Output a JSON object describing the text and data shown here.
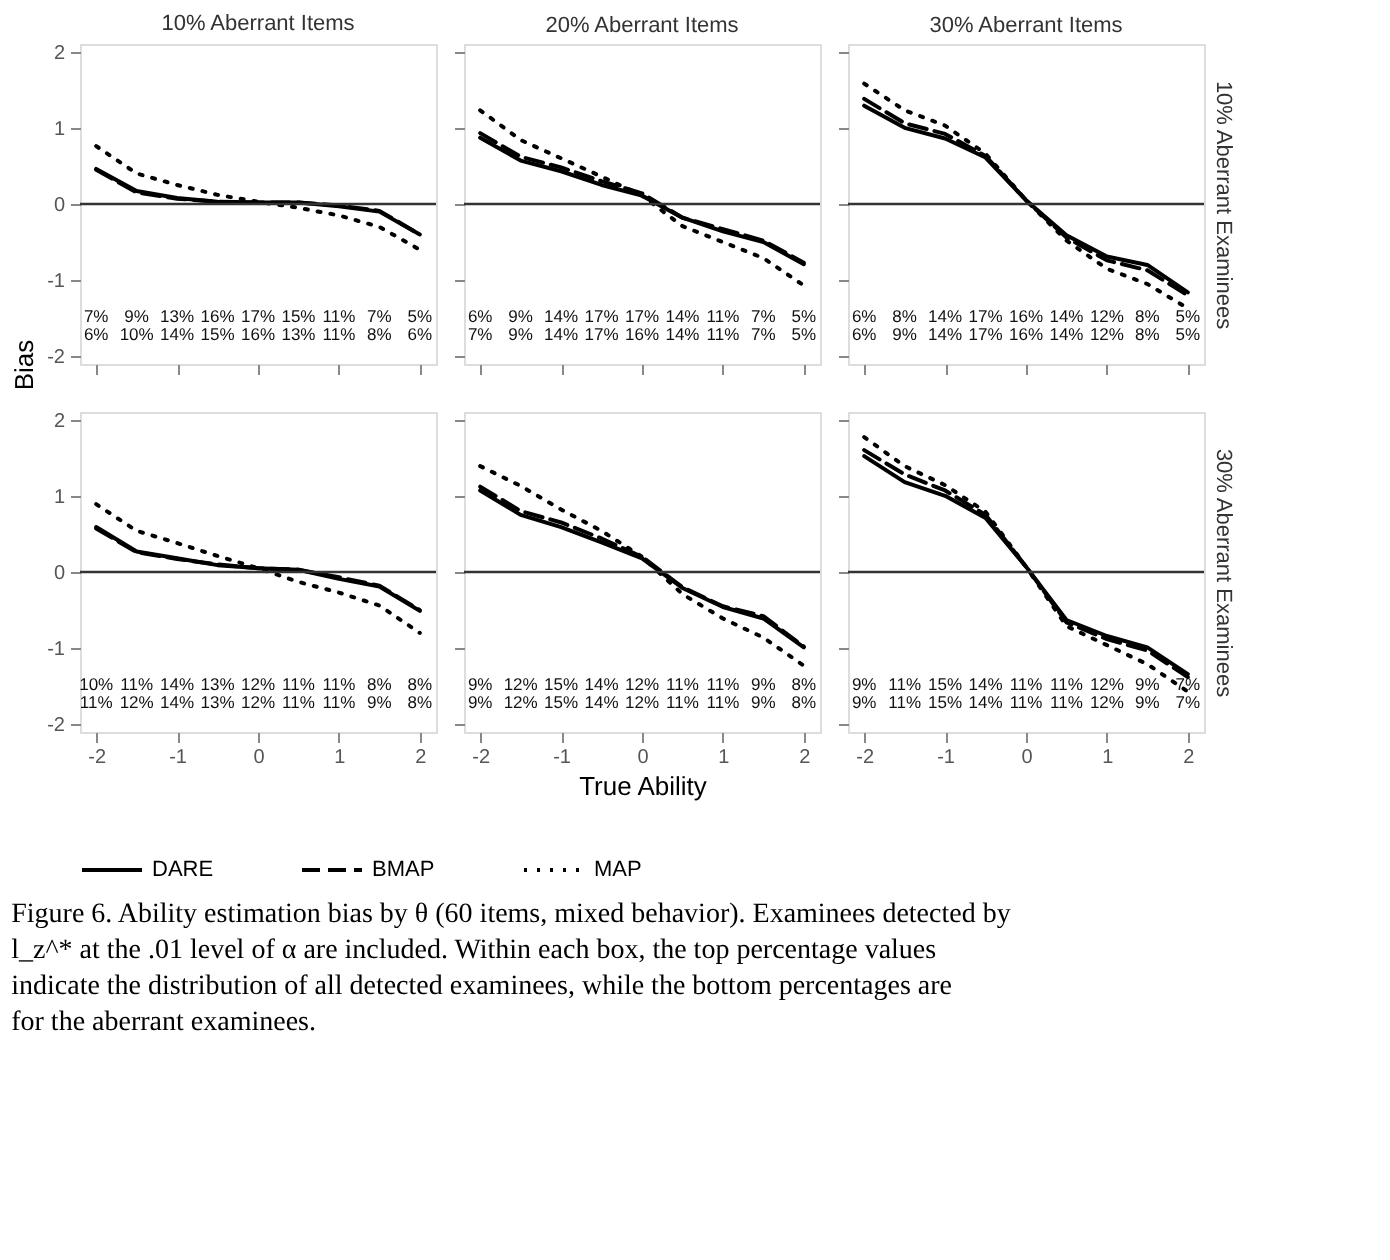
{
  "chart_data": [
    {
      "type": "line",
      "title": "10% Aberrant Items",
      "ylabel": "Bias",
      "xlim": [
        -2.2,
        2.2
      ],
      "ylim": [
        -2.1,
        2.1
      ],
      "xticks": [
        -2,
        -1,
        0,
        1,
        2
      ],
      "yticks": [
        -2,
        -1,
        0,
        1,
        2
      ],
      "tick_labels": "y",
      "grid": false,
      "legend": "bottom",
      "marker": "none",
      "x": [
        -2,
        -1.5,
        -1,
        -0.5,
        0,
        0.5,
        1,
        1.5,
        2
      ],
      "series": [
        {
          "name": "DARE",
          "color": "#000000",
          "line_style": "solid",
          "values": [
            0.46,
            0.17,
            0.08,
            0.03,
            0.02,
            0.02,
            -0.03,
            -0.1,
            -0.4
          ]
        },
        {
          "name": "BMAP",
          "color": "#000000",
          "line_style": "dashed",
          "values": [
            0.45,
            0.15,
            0.07,
            0.03,
            0.02,
            0.02,
            -0.02,
            -0.09,
            -0.4
          ]
        },
        {
          "name": "MAP",
          "color": "#000000",
          "line_style": "dotted",
          "values": [
            0.76,
            0.4,
            0.25,
            0.12,
            0.03,
            -0.05,
            -0.15,
            -0.3,
            -0.6
          ]
        }
      ],
      "ref_lines": [
        {
          "axis": "y",
          "value": 0
        }
      ],
      "annotations": [
        "7%",
        "9%",
        "13%",
        "16%",
        "17%",
        "15%",
        "11%",
        "7%",
        "5%",
        "6%",
        "10%",
        "14%",
        "15%",
        "16%",
        "13%",
        "11%",
        "8%",
        "6%"
      ]
    },
    {
      "type": "line",
      "title": "20% Aberrant Items",
      "xlim": [
        -2.2,
        2.2
      ],
      "ylim": [
        -2.1,
        2.1
      ],
      "xticks": [
        -2,
        -1,
        0,
        1,
        2
      ],
      "yticks": [
        -2,
        -1,
        0,
        1,
        2
      ],
      "tick_labels": false,
      "grid": false,
      "legend": "bottom",
      "marker": "none",
      "x": [
        -2,
        -1.5,
        -1,
        -0.5,
        0,
        0.5,
        1,
        1.5,
        2
      ],
      "series": [
        {
          "name": "DARE",
          "color": "#000000",
          "line_style": "solid",
          "values": [
            0.87,
            0.57,
            0.43,
            0.25,
            0.11,
            -0.18,
            -0.36,
            -0.5,
            -0.79
          ]
        },
        {
          "name": "BMAP",
          "color": "#000000",
          "line_style": "dashed",
          "values": [
            0.93,
            0.62,
            0.48,
            0.3,
            0.14,
            -0.18,
            -0.33,
            -0.48,
            -0.77
          ]
        },
        {
          "name": "MAP",
          "color": "#000000",
          "line_style": "dotted",
          "values": [
            1.23,
            0.84,
            0.6,
            0.36,
            0.11,
            -0.29,
            -0.5,
            -0.71,
            -1.07
          ]
        }
      ],
      "ref_lines": [
        {
          "axis": "y",
          "value": 0
        }
      ],
      "annotations": [
        "6%",
        "9%",
        "14%",
        "17%",
        "17%",
        "14%",
        "11%",
        "7%",
        "5%",
        "7%",
        "9%",
        "14%",
        "17%",
        "16%",
        "14%",
        "11%",
        "7%",
        "5%"
      ]
    },
    {
      "type": "line",
      "title": "30% Aberrant Items",
      "y2label": "10% Aberrant Examinees",
      "xlim": [
        -2.2,
        2.2
      ],
      "ylim": [
        -2.1,
        2.1
      ],
      "xticks": [
        -2,
        -1,
        0,
        1,
        2
      ],
      "yticks": [
        -2,
        -1,
        0,
        1,
        2
      ],
      "tick_labels": false,
      "grid": false,
      "legend": "bottom",
      "marker": "none",
      "x": [
        -2,
        -1.5,
        -1,
        -0.5,
        0,
        0.5,
        1,
        1.5,
        2
      ],
      "series": [
        {
          "name": "DARE",
          "color": "#000000",
          "line_style": "solid",
          "values": [
            1.29,
            1.0,
            0.86,
            0.61,
            0.05,
            -0.41,
            -0.69,
            -0.8,
            -1.16
          ]
        },
        {
          "name": "BMAP",
          "color": "#000000",
          "line_style": "dashed",
          "values": [
            1.38,
            1.06,
            0.92,
            0.63,
            0.05,
            -0.44,
            -0.74,
            -0.87,
            -1.2
          ]
        },
        {
          "name": "MAP",
          "color": "#000000",
          "line_style": "dotted",
          "values": [
            1.58,
            1.23,
            1.03,
            0.66,
            0.05,
            -0.48,
            -0.85,
            -1.05,
            -1.37
          ]
        }
      ],
      "ref_lines": [
        {
          "axis": "y",
          "value": 0
        }
      ],
      "annotations": [
        "6%",
        "8%",
        "14%",
        "17%",
        "16%",
        "14%",
        "12%",
        "8%",
        "5%",
        "6%",
        "9%",
        "14%",
        "17%",
        "16%",
        "14%",
        "12%",
        "8%",
        "5%"
      ]
    },
    {
      "type": "line",
      "xlim": [
        -2.2,
        2.2
      ],
      "ylim": [
        -2.1,
        2.1
      ],
      "xticks": [
        -2,
        -1,
        0,
        1,
        2
      ],
      "yticks": [
        -2,
        -1,
        0,
        1,
        2
      ],
      "grid": false,
      "legend": "bottom",
      "marker": "none",
      "x": [
        -2,
        -1.5,
        -1,
        -0.5,
        0,
        0.5,
        1,
        1.5,
        2
      ],
      "series": [
        {
          "name": "DARE",
          "color": "#000000",
          "line_style": "solid",
          "values": [
            0.59,
            0.27,
            0.18,
            0.09,
            0.05,
            0.03,
            -0.09,
            -0.19,
            -0.51
          ]
        },
        {
          "name": "BMAP",
          "color": "#000000",
          "line_style": "dashed",
          "values": [
            0.57,
            0.26,
            0.17,
            0.1,
            0.05,
            0.03,
            -0.07,
            -0.18,
            -0.5
          ]
        },
        {
          "name": "MAP",
          "color": "#000000",
          "line_style": "dotted",
          "values": [
            0.89,
            0.54,
            0.38,
            0.21,
            0.05,
            -0.13,
            -0.27,
            -0.44,
            -0.8
          ]
        }
      ],
      "ref_lines": [
        {
          "axis": "y",
          "value": 0
        }
      ],
      "annotations": [
        "10%",
        "11%",
        "14%",
        "13%",
        "12%",
        "11%",
        "11%",
        "8%",
        "8%",
        "11%",
        "12%",
        "14%",
        "13%",
        "12%",
        "11%",
        "11%",
        "9%",
        "8%"
      ]
    },
    {
      "type": "line",
      "xlabel": "True Ability",
      "xlim": [
        -2.2,
        2.2
      ],
      "ylim": [
        -2.1,
        2.1
      ],
      "xticks": [
        -2,
        -1,
        0,
        1,
        2
      ],
      "yticks": [
        -2,
        -1,
        0,
        1,
        2
      ],
      "tick_labels": "x",
      "grid": false,
      "legend": "bottom",
      "marker": "none",
      "x": [
        -2,
        -1.5,
        -1,
        -0.5,
        0,
        0.5,
        1,
        1.5,
        2
      ],
      "series": [
        {
          "name": "DARE",
          "color": "#000000",
          "line_style": "solid",
          "values": [
            1.07,
            0.75,
            0.59,
            0.39,
            0.18,
            -0.21,
            -0.46,
            -0.61,
            -0.99
          ]
        },
        {
          "name": "BMAP",
          "color": "#000000",
          "line_style": "dashed",
          "values": [
            1.12,
            0.8,
            0.65,
            0.44,
            0.2,
            -0.2,
            -0.45,
            -0.58,
            -0.98
          ]
        },
        {
          "name": "MAP",
          "color": "#000000",
          "line_style": "dotted",
          "values": [
            1.39,
            1.13,
            0.82,
            0.54,
            0.2,
            -0.29,
            -0.61,
            -0.86,
            -1.23
          ]
        }
      ],
      "ref_lines": [
        {
          "axis": "y",
          "value": 0
        }
      ],
      "annotations": [
        "9%",
        "12%",
        "15%",
        "14%",
        "12%",
        "11%",
        "11%",
        "9%",
        "8%",
        "9%",
        "12%",
        "15%",
        "14%",
        "12%",
        "11%",
        "11%",
        "9%",
        "8%"
      ]
    },
    {
      "type": "line",
      "y2label": "30% Aberrant Examinees",
      "xlim": [
        -2.2,
        2.2
      ],
      "ylim": [
        -2.1,
        2.1
      ],
      "xticks": [
        -2,
        -1,
        0,
        1,
        2
      ],
      "yticks": [
        -2,
        -1,
        0,
        1,
        2
      ],
      "tick_labels": "x",
      "grid": false,
      "legend": "bottom",
      "marker": "none",
      "x": [
        -2,
        -1.5,
        -1,
        -0.5,
        0,
        0.5,
        1,
        1.5,
        2
      ],
      "series": [
        {
          "name": "DARE",
          "color": "#000000",
          "line_style": "solid",
          "values": [
            1.52,
            1.18,
            1.0,
            0.71,
            0.07,
            -0.63,
            -0.84,
            -0.99,
            -1.34
          ]
        },
        {
          "name": "BMAP",
          "color": "#000000",
          "line_style": "dashed",
          "values": [
            1.6,
            1.28,
            1.07,
            0.75,
            0.07,
            -0.66,
            -0.88,
            -1.03,
            -1.38
          ]
        },
        {
          "name": "MAP",
          "color": "#000000",
          "line_style": "dotted",
          "values": [
            1.77,
            1.39,
            1.14,
            0.79,
            0.07,
            -0.71,
            -0.96,
            -1.21,
            -1.57
          ]
        }
      ],
      "ref_lines": [
        {
          "axis": "y",
          "value": 0
        }
      ],
      "annotations": [
        "9%",
        "11%",
        "15%",
        "14%",
        "11%",
        "11%",
        "12%",
        "9%",
        "7%",
        "9%",
        "11%",
        "15%",
        "14%",
        "11%",
        "11%",
        "12%",
        "9%",
        "7%",
        "Figure 6. Ability estimation bias by θ (60 items, mixed behavior). Examinees detected by l_z^* at the .01 level of α are included. Within each box, the top percentage values indicate the distribution of all detected examinees, while the bottom percentages are for the aberrant examinees."
      ]
    }
  ]
}
